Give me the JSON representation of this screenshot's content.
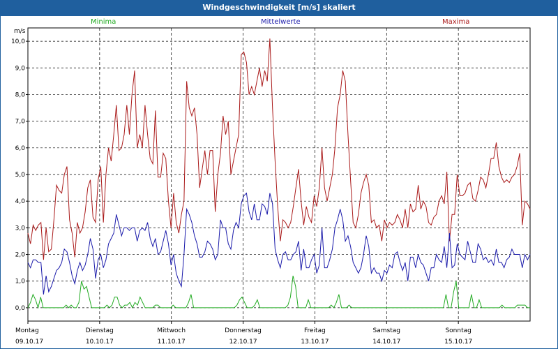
{
  "window": {
    "title": "Windgeschwindigkeit [m/s] skaliert"
  },
  "legend": {
    "min": "Minima",
    "mean": "Mittelwerte",
    "max": "Maxima"
  },
  "axis": {
    "y_unit": "m/s"
  },
  "colors": {
    "min": "#22aa22",
    "mean": "#1a1aaa",
    "max": "#aa1a1a",
    "titlebar": "#1f5f9e"
  },
  "chart_data": {
    "type": "line",
    "title": "Windgeschwindigkeit [m/s] skaliert",
    "ylabel": "m/s",
    "ylim": [
      -0.5,
      10.5
    ],
    "yticks": [
      "0,0",
      "1,0",
      "2,0",
      "3,0",
      "4,0",
      "5,0",
      "6,0",
      "7,0",
      "8,0",
      "9,0",
      "10,0"
    ],
    "days": [
      {
        "name": "Montag",
        "date": "09.10.17"
      },
      {
        "name": "Dienstag",
        "date": "10.10.17"
      },
      {
        "name": "Mittwoch",
        "date": "11.10.17"
      },
      {
        "name": "Donnerstag",
        "date": "12.10.17"
      },
      {
        "name": "Freitag",
        "date": "13.10.17"
      },
      {
        "name": "Samstag",
        "date": "14.10.17"
      },
      {
        "name": "Sonntag",
        "date": "15.10.17"
      }
    ],
    "grid": true,
    "series": [
      {
        "name": "Maxima",
        "values": [
          2.8,
          2.4,
          3.1,
          2.9,
          3.1,
          3.2,
          1.8,
          3.0,
          2.1,
          2.2,
          3.3,
          4.6,
          4.4,
          4.3,
          5.0,
          5.3,
          3.3,
          2.8,
          1.9,
          3.2,
          2.8,
          3.0,
          3.6,
          4.5,
          4.8,
          3.4,
          3.2,
          4.8,
          5.3,
          3.2,
          5.0,
          6.0,
          5.5,
          6.5,
          7.6,
          5.9,
          6.0,
          6.5,
          7.6,
          6.5,
          8.0,
          8.9,
          6.0,
          6.5,
          6.0,
          7.6,
          6.5,
          5.6,
          5.4,
          7.4,
          4.9,
          4.9,
          5.8,
          5.6,
          4.0,
          3.0,
          4.3,
          3.2,
          2.8,
          3.5,
          4.0,
          8.5,
          7.5,
          7.2,
          7.5,
          6.5,
          4.5,
          5.2,
          5.9,
          5.0,
          5.9,
          5.9,
          3.6,
          5.0,
          5.8,
          7.2,
          6.5,
          7.0,
          5.0,
          5.5,
          6.0,
          6.5,
          9.5,
          9.6,
          9.2,
          8.0,
          8.3,
          8.0,
          8.5,
          9.0,
          8.3,
          8.9,
          8.5,
          10.1,
          7.5,
          5.5,
          3.8,
          2.5,
          3.3,
          3.2,
          3.0,
          3.2,
          3.8,
          4.5,
          5.2,
          4.0,
          3.1,
          3.8,
          3.4,
          3.2,
          4.2,
          3.8,
          4.5,
          6.0,
          4.5,
          4.0,
          4.5,
          5.0,
          6.0,
          7.5,
          8.0,
          8.9,
          8.5,
          6.5,
          4.8,
          3.2,
          3.0,
          3.5,
          4.3,
          4.7,
          5.0,
          4.6,
          3.2,
          3.3,
          3.0,
          3.1,
          2.5,
          3.3,
          3.0,
          3.2,
          3.1,
          3.2,
          3.5,
          3.3,
          3.0,
          3.7,
          3.0,
          3.9,
          3.6,
          3.7,
          4.6,
          3.7,
          4.0,
          3.8,
          3.2,
          3.1,
          3.4,
          3.5,
          4.0,
          4.2,
          3.9,
          5.1,
          2.5,
          3.5,
          3.5,
          5.0,
          4.2,
          4.2,
          4.3,
          4.6,
          4.7,
          4.1,
          4.0,
          4.4,
          4.9,
          4.8,
          4.5,
          5.0,
          5.6,
          5.6,
          6.2,
          5.3,
          4.9,
          4.7,
          4.8,
          4.7,
          4.9,
          5.0,
          5.3,
          5.8,
          3.1,
          4.0,
          3.9,
          3.7
        ]
      },
      {
        "name": "Mittelwerte",
        "values": [
          1.7,
          1.5,
          1.8,
          1.8,
          1.7,
          1.7,
          0.5,
          1.2,
          0.6,
          0.8,
          1.1,
          1.4,
          1.5,
          1.7,
          2.2,
          2.1,
          1.7,
          1.2,
          0.9,
          1.4,
          1.7,
          1.4,
          1.6,
          2.0,
          2.6,
          2.2,
          1.1,
          1.8,
          2.0,
          1.5,
          1.8,
          2.4,
          2.6,
          2.8,
          3.5,
          3.1,
          2.7,
          3.0,
          3.0,
          2.9,
          3.0,
          3.0,
          2.5,
          2.9,
          3.0,
          2.9,
          3.2,
          2.6,
          2.3,
          2.6,
          2.0,
          2.1,
          2.5,
          2.9,
          2.4,
          1.6,
          2.0,
          1.3,
          1.0,
          0.8,
          2.0,
          3.7,
          3.5,
          3.2,
          2.7,
          2.4,
          1.9,
          1.9,
          2.1,
          2.5,
          2.4,
          2.2,
          1.8,
          2.0,
          3.3,
          3.0,
          3.0,
          2.4,
          2.2,
          2.9,
          3.2,
          3.0,
          3.9,
          4.2,
          4.3,
          3.6,
          3.3,
          3.9,
          3.3,
          3.3,
          3.9,
          3.8,
          3.5,
          4.3,
          3.9,
          2.2,
          1.8,
          1.5,
          2.0,
          2.1,
          1.8,
          1.8,
          2.0,
          2.1,
          2.5,
          1.4,
          2.2,
          1.5,
          1.5,
          1.8,
          2.0,
          1.3,
          1.6,
          3.0,
          1.5,
          1.5,
          1.8,
          2.2,
          3.0,
          3.3,
          3.7,
          3.3,
          2.5,
          2.7,
          2.3,
          1.7,
          1.5,
          1.3,
          1.5,
          2.0,
          2.7,
          2.3,
          1.3,
          1.5,
          1.3,
          1.3,
          1.0,
          1.4,
          1.3,
          1.6,
          1.5,
          2.0,
          2.1,
          1.7,
          1.4,
          1.7,
          1.0,
          1.9,
          1.9,
          1.5,
          2.0,
          1.7,
          1.6,
          1.3,
          1.0,
          1.5,
          1.5,
          2.0,
          1.8,
          1.7,
          2.3,
          1.5,
          2.8,
          1.5,
          1.6,
          2.4,
          2.0,
          1.9,
          1.8,
          2.5,
          2.1,
          1.7,
          1.7,
          2.4,
          2.2,
          1.8,
          1.9,
          1.7,
          1.8,
          1.6,
          2.2,
          1.7,
          1.7,
          1.5,
          1.8,
          1.9,
          2.2,
          2.0,
          2.0,
          2.0,
          1.5,
          2.0,
          1.8,
          2.0
        ]
      },
      {
        "name": "Minima",
        "values": [
          0.0,
          0.2,
          0.5,
          0.3,
          0.0,
          0.4,
          0.0,
          0.0,
          0.0,
          0.0,
          0.0,
          0.0,
          0.0,
          0.0,
          0.0,
          0.1,
          0.0,
          0.1,
          0.0,
          0.0,
          0.2,
          1.0,
          0.7,
          0.8,
          0.4,
          0.0,
          0.0,
          0.0,
          0.0,
          0.0,
          0.0,
          0.1,
          0.0,
          0.1,
          0.4,
          0.4,
          0.1,
          0.0,
          0.1,
          0.1,
          0.2,
          0.0,
          0.2,
          0.1,
          0.4,
          0.2,
          0.0,
          0.0,
          0.0,
          0.0,
          0.1,
          0.1,
          0.0,
          0.0,
          0.0,
          0.0,
          0.0,
          0.1,
          0.0,
          0.0,
          0.0,
          0.0,
          0.0,
          0.2,
          0.5,
          0.0,
          0.0,
          0.0,
          0.0,
          0.0,
          0.0,
          0.0,
          0.0,
          0.0,
          0.0,
          0.0,
          0.0,
          0.0,
          0.0,
          0.0,
          0.0,
          0.0,
          0.1,
          0.3,
          0.4,
          0.2,
          0.0,
          0.0,
          0.0,
          0.1,
          0.3,
          0.0,
          0.0,
          0.0,
          0.0,
          0.0,
          0.0,
          0.0,
          0.0,
          0.0,
          0.0,
          0.0,
          0.1,
          0.4,
          1.2,
          0.8,
          0.0,
          0.0,
          0.0,
          0.0,
          0.3,
          0.0,
          0.0,
          0.0,
          0.0,
          0.0,
          0.0,
          0.0,
          0.0,
          0.1,
          0.0,
          0.2,
          0.5,
          0.0,
          0.0,
          0.0,
          0.1,
          0.0,
          0.0,
          0.0,
          0.0,
          0.0,
          0.0,
          0.0,
          0.0,
          0.0,
          0.0,
          0.0,
          0.0,
          0.0,
          0.0,
          0.0,
          0.0,
          0.0,
          0.0,
          0.0,
          0.0,
          0.0,
          0.0,
          0.0,
          0.0,
          0.0,
          0.0,
          0.0,
          0.0,
          0.0,
          0.0,
          0.0,
          0.0,
          0.0,
          0.0,
          0.0,
          0.0,
          0.0,
          0.5,
          0.0,
          0.0,
          0.6,
          1.0,
          0.0,
          0.0,
          0.0,
          0.0,
          0.0,
          0.5,
          0.0,
          0.0,
          0.3,
          0.0,
          0.0,
          0.0,
          0.0,
          0.0,
          0.0,
          0.0,
          0.0,
          0.1,
          0.0,
          0.0,
          0.0,
          0.0,
          0.0,
          0.1,
          0.1,
          0.1,
          0.1,
          0.0,
          0.0
        ]
      }
    ]
  }
}
